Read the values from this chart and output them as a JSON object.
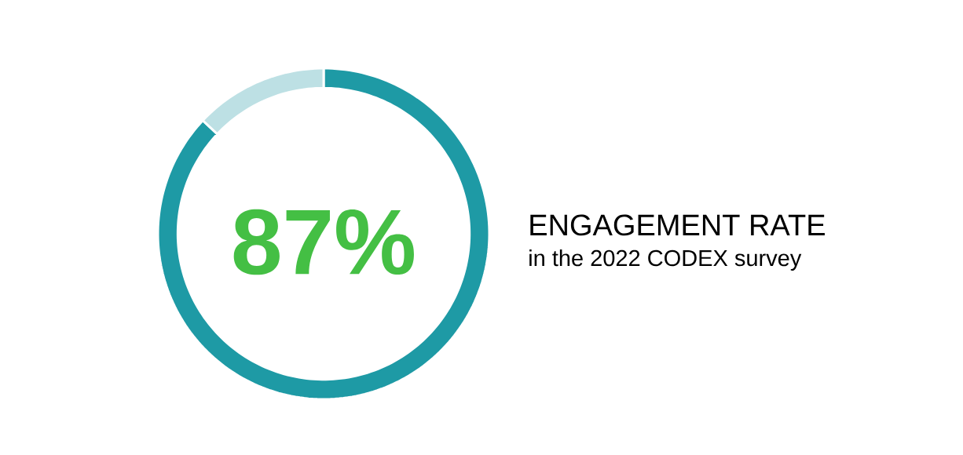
{
  "chart_data": {
    "type": "donut",
    "title": "ENGAGEMENT RATE",
    "subtitle": "in the 2022 CODEX survey",
    "categories": [
      null,
      null
    ],
    "values": [
      87,
      13
    ],
    "colors": [
      "#1e9aa5",
      "#bde0e4"
    ],
    "value_labels": [
      "87%",
      null
    ]
  }
}
